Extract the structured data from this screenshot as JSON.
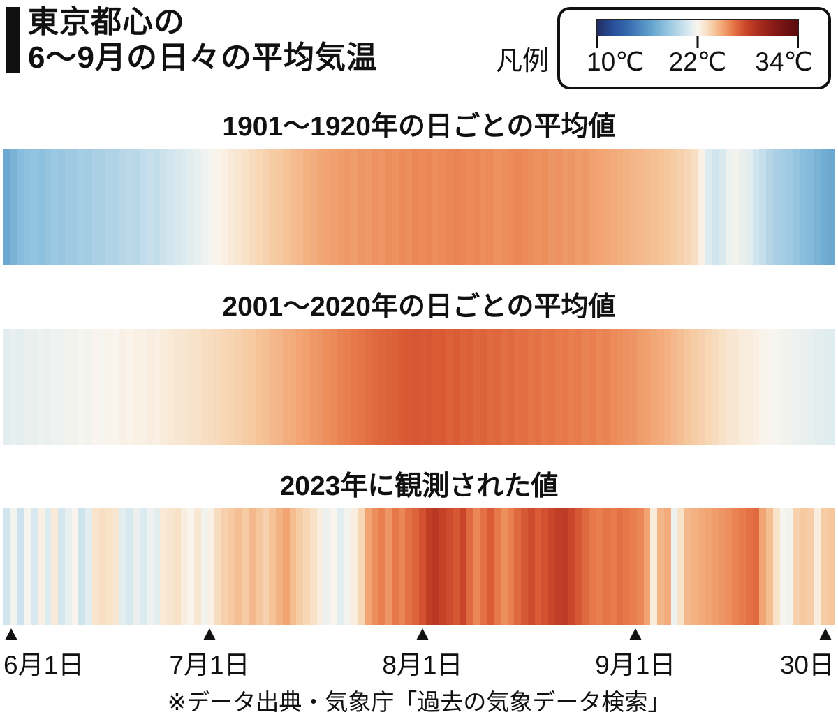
{
  "header": {
    "title_line1": "東京都心の",
    "title_line2": "6〜9月の日々の平均気温"
  },
  "legend": {
    "label": "凡例",
    "ticks": [
      {
        "label": "10℃",
        "value": 10
      },
      {
        "label": "22℃",
        "value": 22
      },
      {
        "label": "34℃",
        "value": 34
      }
    ]
  },
  "footer": {
    "source_note": "※データ出典・気象庁「過去の気象データ検索」"
  },
  "chart_data": {
    "type": "heatmap",
    "title": "東京都心の6〜9月の日々の平均気温",
    "unit": "℃",
    "legend_position": "top-right",
    "colormap": {
      "min": 10,
      "max": 34,
      "stops": [
        [
          10,
          "#232e63"
        ],
        [
          11,
          "#25407f"
        ],
        [
          12,
          "#2a509b"
        ],
        [
          13.5,
          "#3567ad"
        ],
        [
          15,
          "#4a85bf"
        ],
        [
          16.5,
          "#64a3cd"
        ],
        [
          18,
          "#8abedd"
        ],
        [
          19.5,
          "#b3d5e7"
        ],
        [
          21,
          "#dcebf0"
        ],
        [
          22,
          "#f9f5ee"
        ],
        [
          23,
          "#f8e2c8"
        ],
        [
          24,
          "#f6c69c"
        ],
        [
          25,
          "#f2a473"
        ],
        [
          26,
          "#e97f4f"
        ],
        [
          27,
          "#da5c36"
        ],
        [
          28,
          "#c54127"
        ],
        [
          29.5,
          "#a52b1d"
        ],
        [
          31,
          "#8a1c16"
        ],
        [
          32.5,
          "#701212"
        ],
        [
          34,
          "#5a0c10"
        ]
      ]
    },
    "x_axis": {
      "start_label": "6月1日",
      "end_label": "30日",
      "total_days": 122,
      "ticks": [
        {
          "label": "6月1日",
          "day": 0,
          "align": "left"
        },
        {
          "label": "7月1日",
          "day": 30,
          "align": "center"
        },
        {
          "label": "8月1日",
          "day": 61,
          "align": "center"
        },
        {
          "label": "9月1日",
          "day": 92,
          "align": "center"
        },
        {
          "label": "30日",
          "day": 121,
          "align": "right"
        }
      ]
    },
    "series": [
      {
        "title": "1901〜1920年の日ごとの平均値",
        "values": [
          16.8,
          17.4,
          17.9,
          18.2,
          18.3,
          18.1,
          18.4,
          18.6,
          18.5,
          18.8,
          18.7,
          19.0,
          18.9,
          19.2,
          19.1,
          19.4,
          19.3,
          19.6,
          19.8,
          19.7,
          20.0,
          20.2,
          20.1,
          20.4,
          20.6,
          20.8,
          21.0,
          21.2,
          21.4,
          21.7,
          21.9,
          22.1,
          22.3,
          22.6,
          22.8,
          23.0,
          23.2,
          23.4,
          23.6,
          23.8,
          23.9,
          24.1,
          24.3,
          24.4,
          24.6,
          24.7,
          24.9,
          25.0,
          25.1,
          25.2,
          25.3,
          25.2,
          25.4,
          25.3,
          25.5,
          25.4,
          25.6,
          25.5,
          25.7,
          25.6,
          25.8,
          25.7,
          25.8,
          25.6,
          25.7,
          25.8,
          25.9,
          25.8,
          25.7,
          25.8,
          25.6,
          25.7,
          25.5,
          25.6,
          25.7,
          25.8,
          25.7,
          25.6,
          25.5,
          25.6,
          25.4,
          25.5,
          25.3,
          25.4,
          25.2,
          25.3,
          25.1,
          25.0,
          24.9,
          24.8,
          24.7,
          24.6,
          24.5,
          24.4,
          24.3,
          24.2,
          24.1,
          24.0,
          23.8,
          23.6,
          23.4,
          23.1,
          22.2,
          21.0,
          20.6,
          20.9,
          21.6,
          21.8,
          21.5,
          21.2,
          20.6,
          20.2,
          19.6,
          19.2,
          19.0,
          18.8,
          18.4,
          18.0,
          17.8,
          17.4,
          17.0,
          16.8
        ]
      },
      {
        "title": "2001〜2020年の日ごとの平均値",
        "values": [
          21.2,
          21.4,
          21.3,
          21.5,
          21.4,
          21.6,
          21.5,
          21.7,
          21.6,
          21.8,
          21.7,
          21.9,
          21.8,
          22.0,
          21.9,
          22.1,
          22.0,
          22.2,
          22.1,
          22.3,
          22.2,
          22.4,
          22.3,
          22.5,
          22.6,
          22.7,
          22.8,
          22.9,
          23.0,
          23.1,
          23.2,
          23.3,
          23.4,
          23.5,
          23.6,
          23.8,
          23.9,
          24.1,
          24.2,
          24.4,
          24.5,
          24.7,
          24.8,
          25.0,
          25.1,
          25.3,
          25.4,
          25.6,
          25.7,
          25.9,
          26.0,
          26.2,
          26.3,
          26.5,
          26.6,
          26.7,
          26.8,
          26.9,
          27.0,
          27.1,
          27.2,
          27.1,
          27.2,
          27.0,
          27.1,
          26.9,
          27.0,
          26.8,
          26.9,
          26.7,
          26.8,
          26.6,
          26.7,
          26.5,
          26.6,
          26.4,
          26.5,
          26.3,
          26.4,
          26.2,
          26.3,
          26.1,
          26.2,
          26.0,
          26.1,
          25.9,
          26.0,
          25.8,
          25.9,
          25.7,
          25.6,
          25.5,
          25.4,
          25.2,
          25.1,
          24.9,
          24.8,
          24.6,
          24.4,
          24.2,
          24.0,
          23.8,
          23.6,
          23.4,
          23.2,
          23.0,
          22.8,
          22.7,
          22.5,
          22.4,
          22.3,
          22.1,
          22.0,
          21.9,
          21.8,
          21.7,
          21.6,
          21.5,
          21.4,
          21.3,
          21.2,
          21.1
        ]
      },
      {
        "title": "2023年に観測された値",
        "values": [
          20.6,
          21.8,
          20.4,
          21.9,
          20.8,
          22.3,
          21.0,
          22.6,
          20.7,
          21.4,
          22.0,
          20.5,
          21.2,
          22.9,
          23.1,
          23.0,
          22.8,
          21.2,
          20.8,
          21.5,
          21.0,
          21.6,
          21.3,
          22.6,
          22.8,
          23.0,
          22.4,
          22.0,
          22.7,
          21.8,
          22.2,
          23.2,
          23.6,
          23.9,
          24.2,
          23.8,
          24.4,
          24.0,
          23.6,
          24.1,
          24.6,
          25.0,
          24.3,
          23.8,
          23.4,
          23.0,
          22.4,
          21.6,
          22.0,
          21.2,
          21.8,
          22.4,
          23.4,
          25.0,
          25.6,
          26.0,
          25.4,
          26.2,
          25.8,
          26.4,
          26.8,
          27.4,
          28.2,
          28.6,
          28.0,
          27.6,
          27.2,
          27.8,
          26.6,
          25.8,
          26.4,
          27.0,
          26.2,
          25.6,
          26.0,
          26.6,
          27.2,
          27.6,
          27.0,
          27.4,
          27.8,
          28.2,
          28.4,
          27.8,
          27.2,
          26.6,
          26.2,
          26.0,
          26.3,
          26.1,
          26.4,
          26.2,
          26.0,
          25.8,
          25.0,
          22.5,
          24.5,
          24.8,
          21.6,
          23.0,
          24.4,
          24.6,
          24.8,
          25.0,
          25.2,
          25.4,
          25.6,
          25.9,
          26.1,
          26.4,
          26.6,
          25.0,
          24.2,
          23.0,
          21.9,
          21.8,
          23.6,
          23.9,
          23.7,
          22.4,
          23.8,
          24.0
        ]
      }
    ]
  }
}
